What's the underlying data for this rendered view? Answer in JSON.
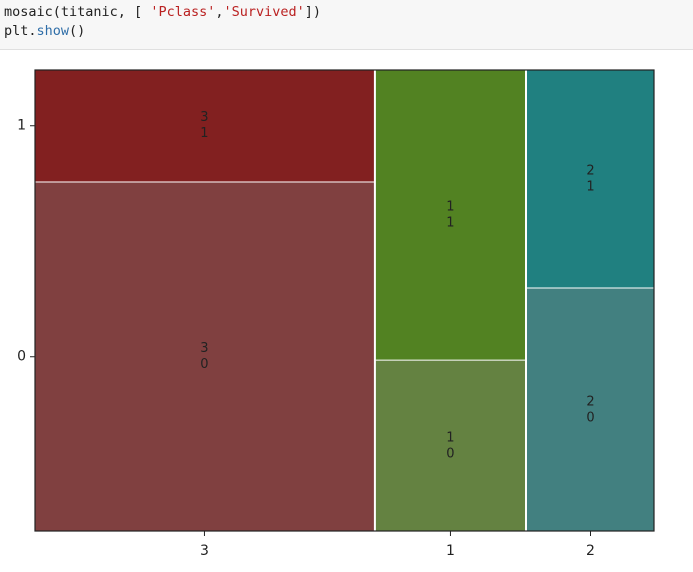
{
  "code": {
    "lines": [
      [
        "mosaic(titanic, [ ",
        "'Pclass'",
        ",",
        "'Survived'",
        "])"
      ],
      [
        "plt",
        ".",
        "show",
        "()"
      ]
    ]
  },
  "chart_data": {
    "type": "mosaic",
    "categories": [
      "3",
      "1",
      "2"
    ],
    "series": [
      {
        "name": "0",
        "values": [
          372,
          80,
          97
        ],
        "colors": [
          "#804040",
          "#648241",
          "#428080"
        ]
      },
      {
        "name": "1",
        "values": [
          119,
          136,
          87
        ],
        "colors": [
          "#822020",
          "#528222",
          "#208080"
        ]
      }
    ]
  }
}
